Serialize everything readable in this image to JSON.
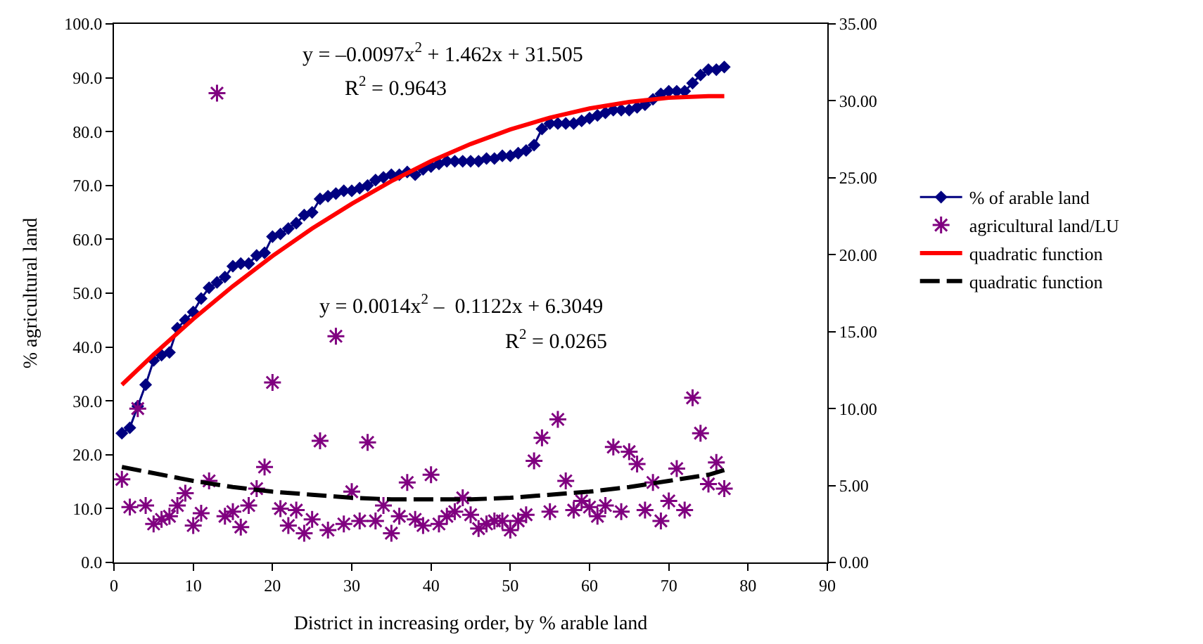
{
  "chart_data": {
    "type": "line",
    "xlabel": "District in increasing order, by % arable land",
    "ylabel": "% agricultural land",
    "xlim": [
      0,
      90
    ],
    "xticks": [
      0,
      10,
      20,
      30,
      40,
      50,
      60,
      70,
      80,
      90
    ],
    "ylim": [
      0,
      100
    ],
    "yticks": [
      {
        "value": 0,
        "label": "0.0"
      },
      {
        "value": 10,
        "label": "10.0"
      },
      {
        "value": 20,
        "label": "20.0"
      },
      {
        "value": 30,
        "label": "30.0"
      },
      {
        "value": 40,
        "label": "40.0"
      },
      {
        "value": 50,
        "label": "50.0"
      },
      {
        "value": 60,
        "label": "60.0"
      },
      {
        "value": 70,
        "label": "70.0"
      },
      {
        "value": 80,
        "label": "80.0"
      },
      {
        "value": 90,
        "label": "90.0"
      },
      {
        "value": 100,
        "label": "100.0"
      }
    ],
    "y2lim": [
      0,
      35
    ],
    "y2ticks": [
      {
        "value": 0,
        "label": "0.00"
      },
      {
        "value": 5,
        "label": "5.00"
      },
      {
        "value": 10,
        "label": "10.00"
      },
      {
        "value": 15,
        "label": "15.00"
      },
      {
        "value": 20,
        "label": "20.00"
      },
      {
        "value": 25,
        "label": "25.00"
      },
      {
        "value": 30,
        "label": "30.00"
      },
      {
        "value": 35,
        "label": "35.00"
      }
    ],
    "legend": "right",
    "annotations": [
      "y = –0.0097x$^{2}$ + 1.462x + 31.505",
      "R$^{2}$ = 0.9643",
      "y = 0.0014x$^{2}$ –  0.1122x + 6.3049",
      "R$^{2}$ = 0.0265"
    ],
    "series": [
      {
        "name": "% of arable land",
        "marker": "diamond",
        "line_style": "solid",
        "color": "#000080",
        "x": [
          1,
          2,
          3,
          4,
          5,
          6,
          7,
          8,
          9,
          10,
          11,
          12,
          13,
          14,
          15,
          16,
          17,
          18,
          19,
          20,
          21,
          22,
          23,
          24,
          25,
          26,
          27,
          28,
          29,
          30,
          31,
          32,
          33,
          34,
          35,
          36,
          37,
          38,
          39,
          40,
          41,
          42,
          43,
          44,
          45,
          46,
          47,
          48,
          49,
          50,
          51,
          52,
          53,
          54,
          55,
          56,
          57,
          58,
          59,
          60,
          61,
          62,
          63,
          64,
          65,
          66,
          67,
          68,
          69,
          70,
          71,
          72,
          73,
          74,
          75,
          76,
          77
        ],
        "values": [
          24,
          25,
          29,
          33,
          37.5,
          38.5,
          39,
          43.5,
          45,
          46.5,
          49,
          51,
          52,
          53,
          55,
          55.5,
          55.5,
          57,
          57.5,
          60.5,
          61,
          62,
          63,
          64.5,
          65,
          67.5,
          68,
          68.5,
          69,
          69,
          69.5,
          70,
          71,
          71.5,
          72,
          72,
          72.5,
          72,
          73,
          73.5,
          74,
          74.5,
          74.5,
          74.5,
          74.5,
          74.5,
          75,
          75,
          75.5,
          75.5,
          76,
          76.5,
          77.5,
          80.5,
          81.5,
          81.5,
          81.5,
          81.5,
          82,
          82.5,
          83,
          83.5,
          84,
          84,
          84,
          84.5,
          85,
          86,
          87,
          87.5,
          87.5,
          87.5,
          89,
          90.5,
          91.5,
          91.5,
          92
        ]
      },
      {
        "name": "agricultural land/LU",
        "type": "scatter",
        "axis": "y2",
        "marker": "cross",
        "color": "#800080",
        "x": [
          1,
          2,
          3,
          4,
          5,
          6,
          7,
          8,
          9,
          10,
          11,
          12,
          13,
          14,
          15,
          16,
          17,
          18,
          19,
          20,
          21,
          22,
          23,
          24,
          25,
          26,
          27,
          28,
          29,
          30,
          31,
          32,
          33,
          34,
          35,
          36,
          37,
          38,
          39,
          40,
          41,
          42,
          43,
          44,
          45,
          46,
          47,
          48,
          49,
          50,
          51,
          52,
          53,
          54,
          55,
          56,
          57,
          58,
          59,
          60,
          61,
          62,
          63,
          64,
          65,
          66,
          67,
          68,
          69,
          70,
          71,
          72,
          73,
          74,
          75,
          76,
          77
        ],
        "values": [
          5.4,
          3.6,
          10.0,
          3.7,
          2.5,
          2.8,
          3.0,
          3.7,
          4.5,
          2.4,
          3.2,
          5.3,
          30.5,
          3.0,
          3.3,
          2.3,
          3.7,
          4.8,
          6.2,
          11.7,
          3.5,
          2.4,
          3.4,
          1.9,
          2.8,
          7.9,
          2.1,
          14.7,
          2.5,
          4.6,
          2.7,
          7.8,
          2.7,
          3.7,
          1.9,
          3.0,
          5.2,
          2.8,
          2.4,
          5.7,
          2.5,
          3.0,
          3.3,
          4.2,
          3.1,
          2.2,
          2.5,
          2.7,
          2.7,
          2.1,
          2.7,
          3.1,
          6.6,
          8.1,
          3.3,
          9.3,
          5.3,
          3.4,
          4.0,
          3.6,
          3.0,
          3.7,
          7.5,
          3.3,
          7.2,
          6.4,
          3.4,
          5.2,
          2.7,
          4.0,
          6.1,
          3.4,
          10.7,
          8.4,
          5.1,
          6.5,
          4.8
        ]
      },
      {
        "name": "quadratic function",
        "marker": "none",
        "line_style": "solid",
        "color": "#ff0000",
        "x": [
          1,
          5,
          10,
          15,
          20,
          25,
          30,
          35,
          40,
          45,
          50,
          55,
          60,
          65,
          70,
          75,
          77
        ],
        "values": [
          33.0,
          38.6,
          45.2,
          51.3,
          56.9,
          62.0,
          66.6,
          70.8,
          74.5,
          77.7,
          80.4,
          82.6,
          84.3,
          85.5,
          86.3,
          86.6,
          86.6
        ]
      },
      {
        "name": "quadratic function",
        "axis": "y2",
        "marker": "none",
        "line_style": "dashed",
        "color": "#000000",
        "x": [
          1,
          5,
          10,
          15,
          20,
          25,
          30,
          35,
          40,
          45,
          50,
          55,
          60,
          65,
          70,
          75,
          77
        ],
        "values": [
          6.2,
          5.8,
          5.3,
          4.9,
          4.6,
          4.4,
          4.2,
          4.1,
          4.1,
          4.1,
          4.2,
          4.4,
          4.6,
          4.9,
          5.3,
          5.7,
          6.0
        ]
      }
    ]
  }
}
